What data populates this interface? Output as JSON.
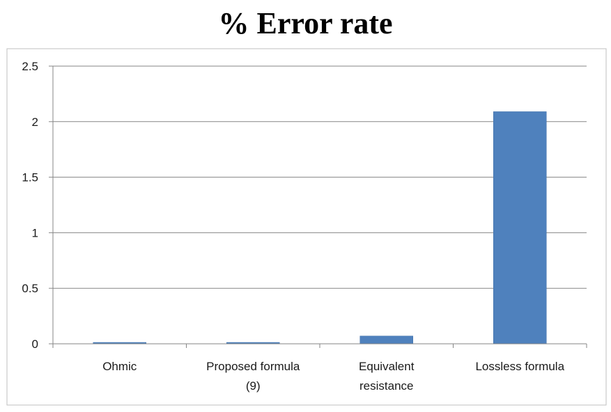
{
  "title": "% Error rate",
  "colors": {
    "bar": "#4f81bd",
    "bar_edge": "#3f6ea8",
    "grid": "#868686",
    "axis": "#868686",
    "frame": "#bfbfbf"
  },
  "chart_data": {
    "type": "bar",
    "title": "% Error rate",
    "categories": [
      [
        "Ohmic"
      ],
      [
        "Proposed formula",
        "(9)"
      ],
      [
        "Equivalent",
        "resistance"
      ],
      [
        "Lossless formula"
      ]
    ],
    "values": [
      0.01,
      0.01,
      0.07,
      2.09
    ],
    "ylim": [
      0,
      2.5
    ],
    "yticks": [
      0,
      0.5,
      1,
      1.5,
      2,
      2.5
    ],
    "ytick_labels": [
      "0",
      "0.5",
      "1",
      "1.5",
      "2",
      "2.5"
    ],
    "xlabel": "",
    "ylabel": "",
    "grid": true,
    "legend": "none"
  }
}
